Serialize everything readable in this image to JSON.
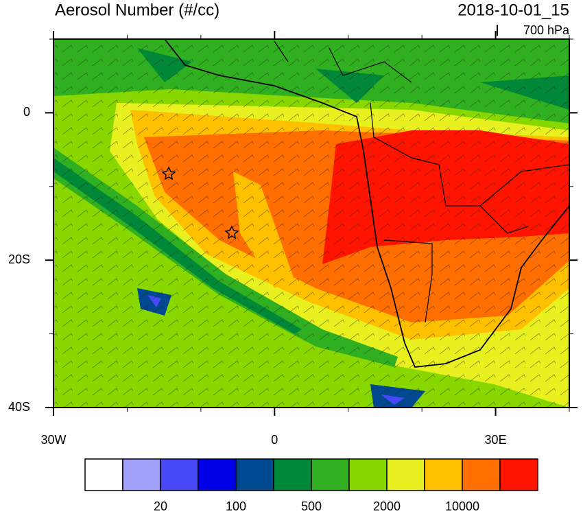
{
  "title": "Aerosol Number (#/cc)",
  "valid_time": "2018-10-01_15",
  "level": "700 hPa",
  "map": {
    "xlim": [
      -30,
      40
    ],
    "ylim": [
      -40,
      10
    ],
    "xticks": [
      {
        "value": -30,
        "label": "30W"
      },
      0,
      {
        "value": 30,
        "label": "30E"
      }
    ],
    "yticks": [
      0,
      {
        "value": -20,
        "label": "20S"
      },
      {
        "value": -40,
        "label": "40S"
      }
    ]
  },
  "colorbar": {
    "colors": [
      "#ffffff",
      "#a0a0f8",
      "#4848f8",
      "#0000e8",
      "#004890",
      "#008838",
      "#30b020",
      "#88d800",
      "#e8f020",
      "#ffc000",
      "#ff6e00",
      "#ff1400"
    ],
    "labels": [
      20,
      100,
      500,
      2000,
      10000
    ]
  }
}
